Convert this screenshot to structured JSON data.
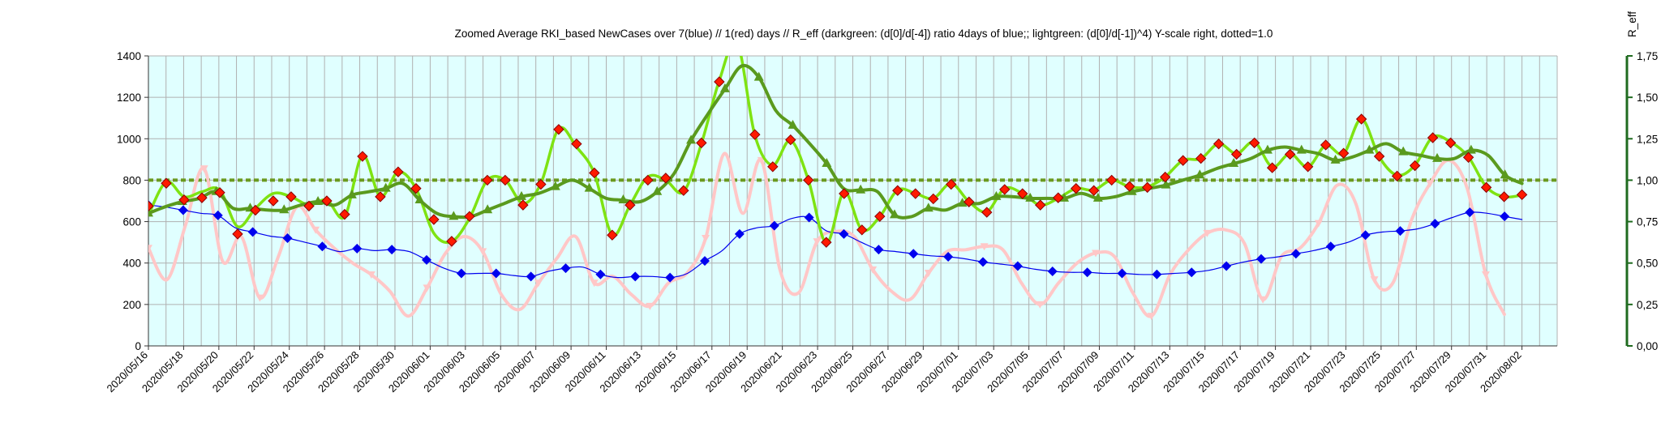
{
  "chart_data": {
    "type": "line",
    "title": "Zoomed Average RKI_based NewCases over 7(blue) // 1(red) days //  R_eff (darkgreen: (d[0]/d[-4]) ratio 4days of blue;; lightgreen: (d[0]/d[-1])^4) Y-scale right, dotted=1.0",
    "ylabel_right": "R_eff",
    "ylim_left": [
      0,
      1400
    ],
    "ylim_right": [
      0,
      1.75
    ],
    "yticks_left": [
      "0",
      "200",
      "400",
      "600",
      "800",
      "1000",
      "1200",
      "1400"
    ],
    "yticks_right": [
      "0,00",
      "0,25",
      "0,50",
      "0,75",
      "1,00",
      "1,25",
      "1,50",
      "1,75"
    ],
    "x_labels": [
      "2020/05/16",
      "2020/05/18",
      "2020/05/20",
      "2020/05/22",
      "2020/05/24",
      "2020/05/26",
      "2020/05/28",
      "2020/05/30",
      "2020/06/01",
      "2020/06/03",
      "2020/06/05",
      "2020/06/07",
      "2020/06/09",
      "2020/06/11",
      "2020/06/13",
      "2020/06/15",
      "2020/06/17",
      "2020/06/19",
      "2020/06/21",
      "2020/06/23",
      "2020/06/25",
      "2020/06/27",
      "2020/06/29",
      "2020/07/01",
      "2020/07/03",
      "2020/07/05",
      "2020/07/07",
      "2020/07/09",
      "2020/07/11",
      "2020/07/13",
      "2020/07/15",
      "2020/07/17",
      "2020/07/19",
      "2020/07/21",
      "2020/07/23",
      "2020/07/25",
      "2020/07/27",
      "2020/07/29",
      "2020/07/31",
      "2020/08/02"
    ],
    "grid": true,
    "reference_line_right": 1.0,
    "colors": {
      "blue": "#0000ee",
      "red_fill": "#ff1a00",
      "red_edge": "#8b0000",
      "pink": "#ffc7c7",
      "lightgreen": "#7ee312",
      "darkgreen": "#5a9a1e",
      "dotted": "#6a9a1e",
      "plot_bg": "#e0ffff",
      "grid": "#b0b0b0",
      "right_axis": "#1f6b1f"
    },
    "series": [
      {
        "axis": "left",
        "values": [
          680,
          670,
          655,
          640,
          630,
          570,
          550,
          530,
          520,
          500,
          480,
          455,
          470,
          460,
          465,
          455,
          415,
          375,
          350,
          350,
          350,
          340,
          335,
          360,
          375,
          380,
          345,
          330,
          335,
          335,
          330,
          350,
          410,
          460,
          540,
          570,
          580,
          615,
          620,
          555,
          540,
          500,
          465,
          455,
          445,
          435,
          430,
          420,
          405,
          395,
          385,
          370,
          360,
          355,
          355,
          350,
          350,
          345,
          345,
          350,
          355,
          365,
          385,
          405,
          420,
          430,
          445,
          460,
          480,
          500,
          535,
          550,
          555,
          565,
          590,
          620,
          645,
          640,
          625,
          610
        ]
      },
      {
        "axis": "left",
        "values": [
          675,
          785,
          705,
          715,
          740,
          540,
          655,
          700,
          720,
          675,
          700,
          635,
          915,
          720,
          840,
          760,
          610,
          505,
          625,
          800,
          800,
          680,
          780,
          1045,
          975,
          835,
          535,
          680,
          800,
          810,
          750,
          980,
          1275,
          1435,
          1020,
          865,
          995,
          800,
          500,
          735,
          560,
          625,
          750,
          735,
          710,
          780,
          695,
          645,
          755,
          735,
          680,
          715,
          760,
          750,
          800,
          770,
          765,
          815,
          895,
          905,
          975,
          925,
          980,
          860,
          925,
          865,
          970,
          930,
          1095,
          915,
          820,
          870,
          1005,
          980,
          910,
          765,
          720,
          730
        ]
      },
      {
        "axis": "right",
        "values": [
          0.59,
          0.4,
          0.73,
          1.07,
          0.51,
          0.66,
          0.29,
          0.54,
          0.84,
          0.7,
          0.59,
          0.5,
          0.43,
          0.33,
          0.18,
          0.35,
          0.56,
          0.66,
          0.57,
          0.31,
          0.22,
          0.38,
          0.53,
          0.66,
          0.38,
          0.42,
          0.31,
          0.24,
          0.38,
          0.44,
          0.65,
          1.16,
          0.8,
          1.12,
          0.46,
          0.32,
          0.63,
          0.69,
          0.66,
          0.46,
          0.33,
          0.28,
          0.44,
          0.57,
          0.58,
          0.6,
          0.58,
          0.38,
          0.25,
          0.38,
          0.5,
          0.56,
          0.54,
          0.32,
          0.18,
          0.43,
          0.58,
          0.68,
          0.7,
          0.62,
          0.28,
          0.54,
          0.59,
          0.74,
          0.97,
          0.86,
          0.4,
          0.38,
          0.76,
          0.98,
          1.12,
          0.95,
          0.43,
          0.19
        ]
      },
      {
        "axis": "right",
        "values": [
          0.79,
          0.99,
          0.9,
          0.93,
          0.94,
          0.72,
          0.83,
          0.92,
          0.9,
          0.85,
          0.88,
          0.78,
          1.15,
          0.9,
          1.05,
          0.95,
          0.68,
          0.63,
          0.77,
          1.0,
          1.0,
          0.86,
          0.98,
          1.31,
          1.2,
          1.04,
          0.67,
          0.85,
          1.02,
          1.0,
          0.93,
          1.22,
          1.6,
          1.83,
          1.27,
          1.09,
          1.24,
          1.0,
          0.62,
          0.93,
          0.7,
          0.78,
          0.94,
          0.92,
          0.89,
          0.98,
          0.87,
          0.81,
          0.95,
          0.92,
          0.85,
          0.89,
          0.95,
          0.94,
          1.0,
          0.96,
          0.96,
          1.02,
          1.12,
          1.13,
          1.22,
          1.16,
          1.23,
          1.08,
          1.16,
          1.08,
          1.21,
          1.16,
          1.37,
          1.14,
          1.03,
          1.09,
          1.26,
          1.23,
          1.14,
          0.96,
          0.9,
          0.91
        ]
      },
      {
        "axis": "right",
        "values": [
          0.8,
          0.84,
          0.87,
          0.89,
          0.93,
          0.83,
          0.83,
          0.82,
          0.82,
          0.85,
          0.87,
          0.85,
          0.91,
          0.93,
          0.95,
          0.98,
          0.88,
          0.8,
          0.78,
          0.78,
          0.82,
          0.86,
          0.9,
          0.92,
          0.96,
          1.0,
          0.95,
          0.89,
          0.88,
          0.87,
          0.93,
          1.04,
          1.24,
          1.4,
          1.55,
          1.69,
          1.62,
          1.42,
          1.33,
          1.22,
          1.1,
          0.95,
          0.94,
          0.93,
          0.79,
          0.78,
          0.83,
          0.82,
          0.86,
          0.86,
          0.9,
          0.9,
          0.89,
          0.89,
          0.89,
          0.92,
          0.89,
          0.9,
          0.93,
          0.95,
          0.97,
          1.0,
          1.03,
          1.07,
          1.1,
          1.13,
          1.18,
          1.2,
          1.18,
          1.16,
          1.12,
          1.14,
          1.18,
          1.22,
          1.17,
          1.15,
          1.13,
          1.13,
          1.18,
          1.15,
          1.03,
          0.98
        ]
      }
    ]
  }
}
